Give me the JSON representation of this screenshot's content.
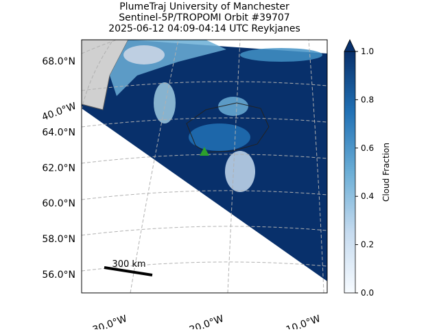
{
  "title": [
    "PlumeTraj    University of Manchester",
    "Sentinel-5P/TROPOMI Orbit #39707",
    "2025-06-12   04:09-04:14 UTC   Reykjanes"
  ],
  "lat_labels": [
    {
      "value": 68,
      "label": "68.0°N"
    },
    {
      "value": 64,
      "label": "64.0°N"
    },
    {
      "value": 62,
      "label": "62.0°N"
    },
    {
      "value": 60,
      "label": "60.0°N"
    },
    {
      "value": 58,
      "label": "58.0°N"
    },
    {
      "value": 56,
      "label": "56.0°N"
    }
  ],
  "lon_labels": [
    {
      "value": 40,
      "label": "40.0°W"
    },
    {
      "value": 30,
      "label": "30.0°W"
    },
    {
      "value": 20,
      "label": "20.0°W"
    },
    {
      "value": 10,
      "label": "10.0°W"
    }
  ],
  "scale_bar": "300 km",
  "colorbar": {
    "label": "Cloud Fraction",
    "lim": [
      0,
      1
    ],
    "ticks": [
      {
        "value": 0,
        "label": "0.0"
      },
      0.2,
      0.4,
      0.6,
      0.8,
      {
        "value": 1,
        "label": "1.0"
      }
    ],
    "colors": [
      "#f7fbff",
      "#c6dbef",
      "#6baed6",
      "#2171b5",
      "#08306b"
    ]
  }
}
